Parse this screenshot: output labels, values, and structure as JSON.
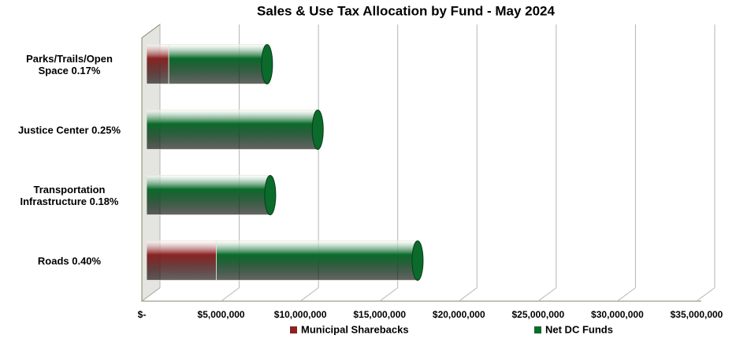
{
  "chart_data": {
    "type": "bar",
    "orientation": "horizontal",
    "stacked": true,
    "title": "Sales & Use Tax Allocation by Fund - May 2024",
    "categories": [
      "Parks/Trails/Open\nSpace 0.17%",
      "Justice Center 0.25%",
      "Transportation\nInfrastructure 0.18%",
      "Roads 0.40%"
    ],
    "series": [
      {
        "name": "Municipal Sharebacks",
        "color": "#8b2323",
        "values": [
          1400000,
          0,
          0,
          4400000
        ]
      },
      {
        "name": "Net DC Funds",
        "color": "#0b6b2b",
        "values": [
          6200000,
          10800000,
          7800000,
          12700000
        ]
      }
    ],
    "xlim": [
      0,
      35000000
    ],
    "xticks": [
      {
        "value": 0,
        "label": "$-"
      },
      {
        "value": 5000000,
        "label": "$5,000,000"
      },
      {
        "value": 10000000,
        "label": "$10,000,000"
      },
      {
        "value": 15000000,
        "label": "$15,000,000"
      },
      {
        "value": 20000000,
        "label": "$20,000,000"
      },
      {
        "value": 25000000,
        "label": "$25,000,000"
      },
      {
        "value": 30000000,
        "label": "$30,000,000"
      },
      {
        "value": 35000000,
        "label": "$35,000,000"
      }
    ],
    "grid": true,
    "legend": "bottom"
  }
}
